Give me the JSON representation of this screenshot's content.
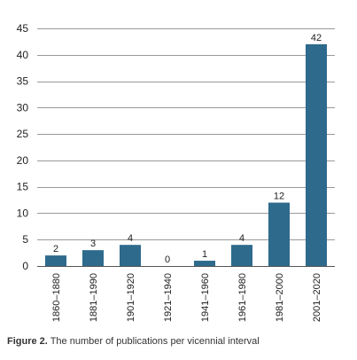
{
  "chart_data": {
    "type": "bar",
    "categories": [
      "1860–1880",
      "1881–1990",
      "1901–1920",
      "1921–1940",
      "1941–1960",
      "1961–1980",
      "1981–2000",
      "2001–2020"
    ],
    "values": [
      2,
      3,
      4,
      0,
      1,
      4,
      12,
      42
    ],
    "data_labels": [
      "2",
      "3",
      "4",
      "0",
      "1",
      "4",
      "12",
      "42"
    ],
    "ylim": [
      0,
      45
    ],
    "yticks": [
      "0",
      "5",
      "10",
      "15",
      "20",
      "25",
      "30",
      "35",
      "40",
      "45"
    ],
    "grid": true,
    "legend": "none",
    "bar_color": "#2e6a8c",
    "title": "",
    "xlabel": "",
    "ylabel": ""
  },
  "caption": {
    "label": "Figure 2.",
    "text": " The number of publications per vicennial interval"
  }
}
